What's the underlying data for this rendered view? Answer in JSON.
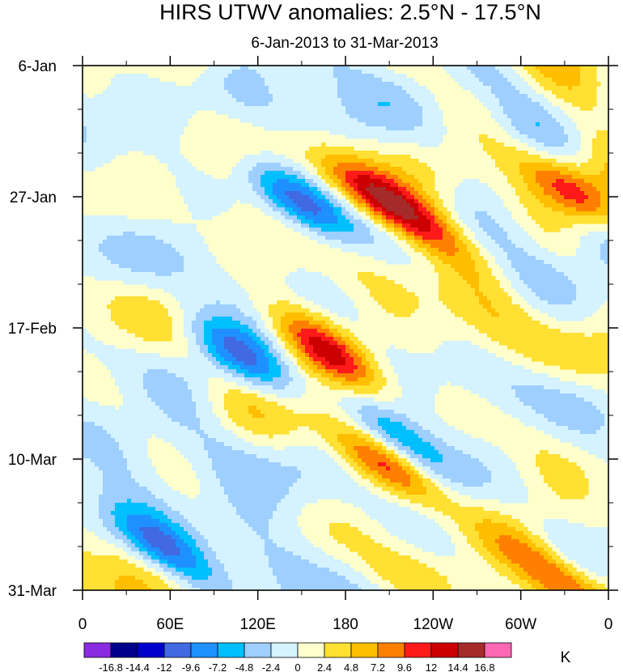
{
  "chart_data": {
    "type": "heatmap",
    "title": "HIRS UTWV anomalies: 2.5°N - 17.5°N",
    "subtitle": "6-Jan-2013 to 31-Mar-2013",
    "xlabel": "",
    "ylabel": "",
    "x_tick_labels": [
      "0",
      "60E",
      "120E",
      "180",
      "120W",
      "60W",
      "0"
    ],
    "x_tick_values_deg_east": [
      0,
      60,
      120,
      180,
      240,
      300,
      360
    ],
    "y_tick_labels": [
      "6-Jan",
      "27-Jan",
      "17-Feb",
      "10-Mar",
      "31-Mar"
    ],
    "y_tick_values_days_from_start": [
      0,
      21,
      42,
      63,
      84
    ],
    "xlim": [
      0,
      360
    ],
    "ylim_days": [
      0,
      84
    ],
    "colorbar": {
      "unit": "K",
      "levels": [
        "-16.8",
        "-14.4",
        "-12",
        "-9.6",
        "-7.2",
        "-4.8",
        "-2.4",
        "0",
        "2.4",
        "4.8",
        "7.2",
        "9.6",
        "12",
        "14.4",
        "16.8"
      ],
      "level_values": [
        -16.8,
        -14.4,
        -12,
        -9.6,
        -7.2,
        -4.8,
        -2.4,
        0,
        2.4,
        4.8,
        7.2,
        9.6,
        12,
        14.4,
        16.8
      ],
      "colors": [
        "#8a2be2",
        "#00008b",
        "#0000cd",
        "#4169e1",
        "#1e90ff",
        "#00bfff",
        "#9ecfff",
        "#d4f2ff",
        "#ffffcc",
        "#ffe033",
        "#ffbe00",
        "#ff8000",
        "#ff1a1a",
        "#cc0000",
        "#a52a2a",
        "#ff69b4"
      ]
    },
    "features_approx": [
      {
        "lon_deg_east": 150,
        "day": 22,
        "value": -13
      },
      {
        "lon_deg_east": 195,
        "day": 20,
        "value": 12
      },
      {
        "lon_deg_east": 230,
        "day": 25,
        "value": 12
      },
      {
        "lon_deg_east": 335,
        "day": 20,
        "value": 13
      },
      {
        "lon_deg_east": 170,
        "day": 46,
        "value": 12
      },
      {
        "lon_deg_east": 210,
        "day": 64,
        "value": 11
      },
      {
        "lon_deg_east": 325,
        "day": 82,
        "value": 13
      },
      {
        "lon_deg_east": 60,
        "day": 78,
        "value": -11
      },
      {
        "lon_deg_east": 215,
        "day": 60,
        "value": -10
      },
      {
        "lon_deg_east": 105,
        "day": 46,
        "value": -9
      }
    ]
  }
}
